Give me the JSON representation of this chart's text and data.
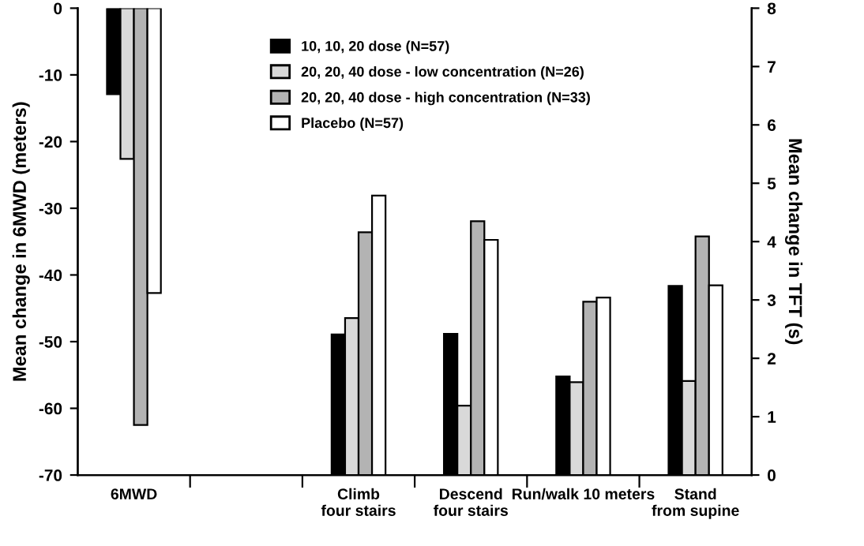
{
  "chart_data": {
    "type": "bar",
    "ylabel": "Mean change in 6MWD (meters)",
    "y2label": "Mean change in TFT (s)",
    "categories": [
      "6MWD",
      null,
      "Climb\nfour stairs",
      "Descend\nfour stairs",
      "Run/walk 10 meters",
      "Stand\nfrom supine"
    ],
    "ylim": [
      -70,
      0
    ],
    "yticks": [
      -70,
      -60,
      -50,
      -40,
      -30,
      -20,
      -10,
      0
    ],
    "y2lim": [
      0,
      8
    ],
    "y2ticks": [
      0,
      1,
      2,
      3,
      4,
      5,
      6,
      7,
      8
    ],
    "legend": "top right",
    "grid": false,
    "series": [
      {
        "name": "10, 10, 20 dose (N=57)",
        "color": "#000000",
        "values": [
          -12.9,
          null,
          null,
          null,
          null,
          null
        ]
      },
      {
        "name": "20, 20, 40 dose - low concentration (N=26)",
        "color": "#d9d9d9",
        "values": [
          -22.6,
          null,
          null,
          null,
          null,
          null
        ]
      },
      {
        "name": "20, 20, 40 dose - high concentration (N=33)",
        "color": "#b3b3b3",
        "values": [
          -62.5,
          null,
          null,
          null,
          null,
          null
        ]
      },
      {
        "name": "Placebo (N=57)",
        "color": "#ffffff",
        "values": [
          -42.7,
          null,
          null,
          null,
          null,
          null
        ]
      },
      {
        "axis": "y2",
        "color": "#000000",
        "values": [
          null,
          null,
          2.41,
          2.42,
          1.69,
          3.24
        ]
      },
      {
        "axis": "y2",
        "color": "#d9d9d9",
        "values": [
          null,
          null,
          2.69,
          1.19,
          1.59,
          1.61
        ]
      },
      {
        "axis": "y2",
        "color": "#b3b3b3",
        "values": [
          null,
          null,
          4.16,
          4.35,
          2.97,
          4.09
        ]
      },
      {
        "axis": "y2",
        "color": "#ffffff",
        "values": [
          null,
          null,
          4.79,
          4.03,
          3.04,
          3.25
        ]
      }
    ]
  }
}
